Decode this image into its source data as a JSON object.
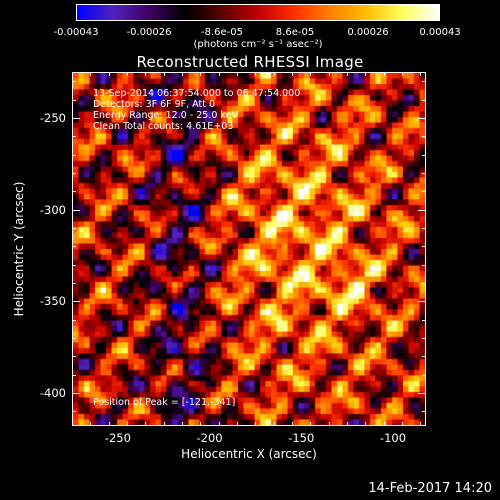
{
  "colorbar": {
    "ticks": [
      "-0.00043",
      "-0.00026",
      "-8.6e-05",
      "8.6e-05",
      "0.00026",
      "0.00043"
    ],
    "unit_label": "(photons cm⁻² s⁻¹ asec⁻²)",
    "range": [
      -0.00043,
      0.00043
    ]
  },
  "info": {
    "line1": "13-Sep-2014 06:37:54.000 to 06:47:54.000",
    "line2": "Detectors: 3F 6F 9F, Att 0",
    "line3": "Energy Range: 12.0 - 25.0 keV",
    "line4": "Clean    Total counts: 4.61E+03",
    "peak": "Position of Peak = [-121,-341]"
  },
  "timestamp": "14-Feb-2017 14:20",
  "chart_data": {
    "type": "heatmap",
    "title": "Reconstructed RHESSI Image",
    "xlabel": "Heliocentric X (arcsec)",
    "ylabel": "Heliocentric Y (arcsec)",
    "xlim": [
      -275,
      -82
    ],
    "ylim": [
      -418,
      -225
    ],
    "xticks": [
      -250,
      -200,
      -150,
      -100
    ],
    "xtick_labels": [
      "-250",
      "-200",
      "-150",
      "-100"
    ],
    "yticks": [
      -250,
      -300,
      -350,
      -400
    ],
    "ytick_labels": [
      "-250",
      "-300",
      "-350",
      "-400"
    ],
    "value_range": [
      -0.00043,
      0.00043
    ],
    "peak": [
      -121,
      -341
    ],
    "colormap": [
      "#0000ff",
      "#5020c0",
      "#400060",
      "#000000",
      "#5a0000",
      "#c00000",
      "#ff3000",
      "#ff8000",
      "#ffc000",
      "#ffff60",
      "#ffffff"
    ]
  }
}
